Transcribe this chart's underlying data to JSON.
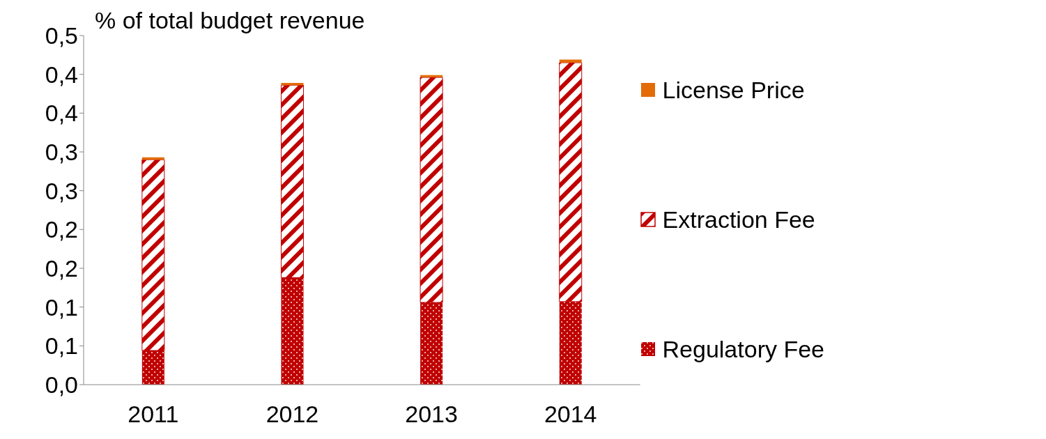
{
  "chart_data": {
    "type": "bar",
    "title": "% of total budget revenue",
    "categories": [
      "2011",
      "2012",
      "2013",
      "2014"
    ],
    "stacked": true,
    "series": [
      {
        "name": "Regulatory Fee",
        "color": "#c00000",
        "values": [
          0.044,
          0.138,
          0.106,
          0.107
        ]
      },
      {
        "name": "Extraction Fee",
        "color": "#c00000",
        "values": [
          0.246,
          0.248,
          0.29,
          0.308
        ]
      },
      {
        "name": "License Price",
        "color": "#e36c09",
        "values": [
          0.003,
          0.003,
          0.003,
          0.004
        ]
      }
    ],
    "ylim": [
      0,
      0.45
    ],
    "yticks": [
      {
        "value": 0,
        "label": "0,0"
      },
      {
        "value": 0.05,
        "label": "0,1"
      },
      {
        "value": 0.1,
        "label": "0,1"
      },
      {
        "value": 0.15,
        "label": "0,2"
      },
      {
        "value": 0.2,
        "label": "0,2"
      },
      {
        "value": 0.25,
        "label": "0,3"
      },
      {
        "value": 0.3,
        "label": "0,3"
      },
      {
        "value": 0.35,
        "label": "0,4"
      },
      {
        "value": 0.4,
        "label": "0,4"
      },
      {
        "value": 0.45,
        "label": "0,5"
      }
    ],
    "legend": "right"
  }
}
